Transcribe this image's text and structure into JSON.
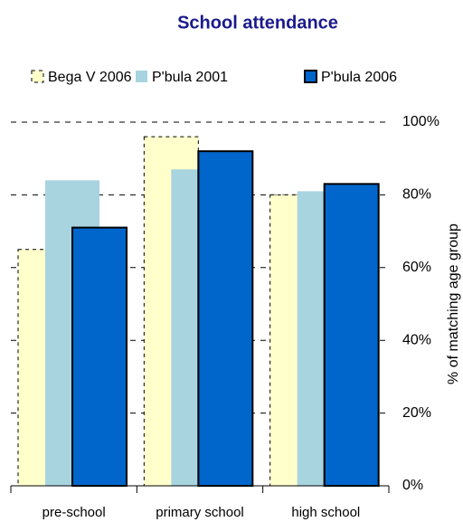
{
  "chart_data": {
    "type": "bar",
    "title": "School attendance",
    "categories": [
      "pre-school",
      "primary school",
      "high school"
    ],
    "series": [
      {
        "name": "Bega V 2006",
        "color": "#ffffcc",
        "values": [
          65,
          96,
          80
        ]
      },
      {
        "name": "P'bula 2001",
        "color": "#a8d4e0",
        "values": [
          84,
          87,
          81
        ]
      },
      {
        "name": "P'bula 2006",
        "color": "#0066cc",
        "values": [
          71,
          92,
          83
        ]
      }
    ],
    "y_label": "% of matching age group",
    "ylim": [
      0,
      100
    ],
    "yticks": [
      {
        "value": 0,
        "label": "0%"
      },
      {
        "value": 20,
        "label": "20%"
      },
      {
        "value": 40,
        "label": "40%"
      },
      {
        "value": 60,
        "label": "60%"
      },
      {
        "value": 80,
        "label": "80%"
      },
      {
        "value": 100,
        "label": "100%"
      }
    ],
    "grid": true,
    "legend": "top"
  }
}
